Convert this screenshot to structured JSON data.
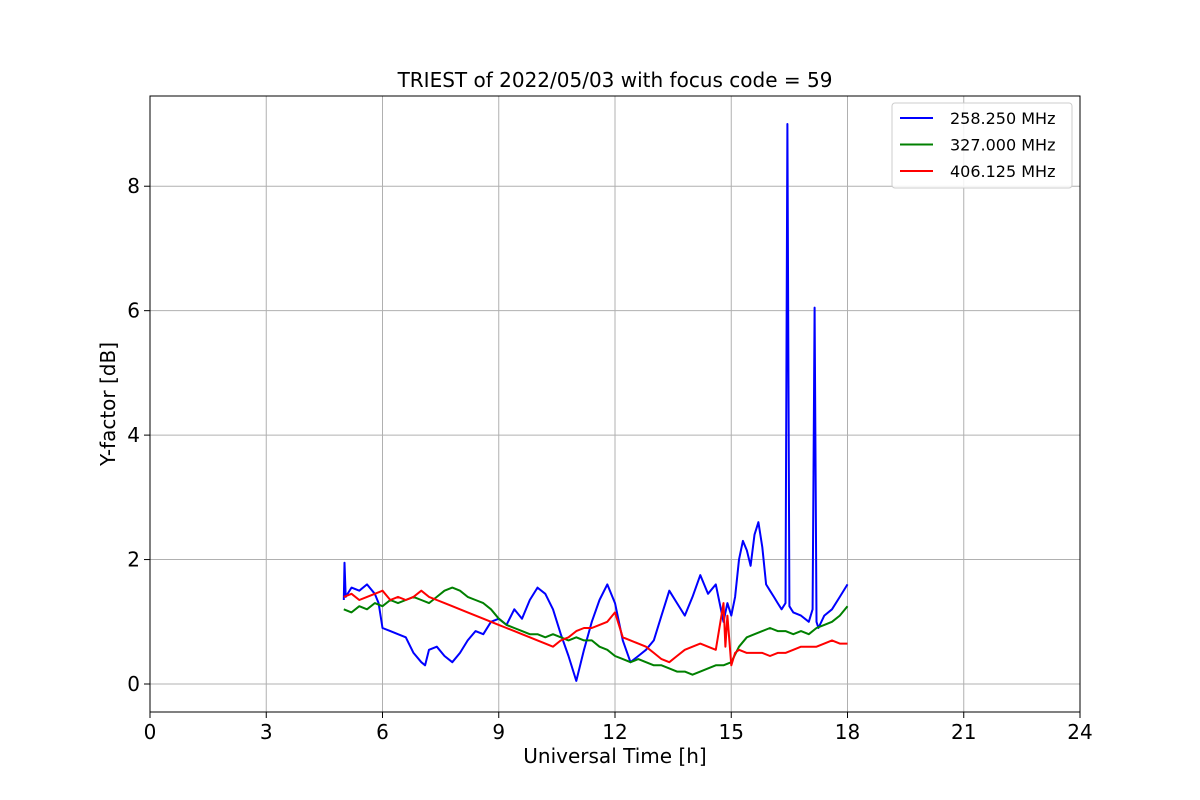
{
  "chart_data": {
    "type": "line",
    "title": "TRIEST of 2022/05/03 with focus code = 59",
    "xlabel": "Universal Time [h]",
    "ylabel": "Y-factor [dB]",
    "xlim": [
      0,
      24
    ],
    "ylim": [
      -0.45,
      9.45
    ],
    "xticks": [
      0,
      3,
      6,
      9,
      12,
      15,
      18,
      21,
      24
    ],
    "yticks": [
      0,
      2,
      4,
      6,
      8
    ],
    "grid": true,
    "legend_position": "top-right",
    "series": [
      {
        "name": "258.250 MHz",
        "color": "#0000ff",
        "x": [
          5.0,
          5.02,
          5.05,
          5.2,
          5.4,
          5.6,
          5.8,
          5.9,
          6.0,
          6.2,
          6.4,
          6.6,
          6.8,
          7.0,
          7.1,
          7.2,
          7.4,
          7.6,
          7.8,
          8.0,
          8.2,
          8.4,
          8.6,
          8.8,
          9.0,
          9.2,
          9.4,
          9.6,
          9.8,
          10.0,
          10.2,
          10.4,
          10.6,
          10.8,
          11.0,
          11.2,
          11.4,
          11.6,
          11.8,
          12.0,
          12.2,
          12.4,
          12.6,
          12.8,
          13.0,
          13.2,
          13.4,
          13.6,
          13.8,
          14.0,
          14.2,
          14.4,
          14.6,
          14.8,
          14.9,
          15.0,
          15.1,
          15.2,
          15.3,
          15.4,
          15.5,
          15.6,
          15.7,
          15.8,
          15.9,
          16.0,
          16.1,
          16.2,
          16.3,
          16.4,
          16.45,
          16.5,
          16.55,
          16.6,
          16.8,
          17.0,
          17.1,
          17.15,
          17.2,
          17.25,
          17.4,
          17.6,
          17.8,
          18.0
        ],
        "y": [
          1.35,
          1.95,
          1.4,
          1.55,
          1.5,
          1.6,
          1.45,
          1.3,
          0.9,
          0.85,
          0.8,
          0.75,
          0.5,
          0.35,
          0.3,
          0.55,
          0.6,
          0.45,
          0.35,
          0.5,
          0.7,
          0.85,
          0.8,
          1.0,
          1.05,
          0.95,
          1.2,
          1.05,
          1.35,
          1.55,
          1.45,
          1.2,
          0.8,
          0.45,
          0.05,
          0.55,
          1.0,
          1.35,
          1.6,
          1.3,
          0.7,
          0.35,
          0.45,
          0.55,
          0.7,
          1.1,
          1.5,
          1.3,
          1.1,
          1.4,
          1.75,
          1.45,
          1.6,
          1.0,
          1.3,
          1.1,
          1.4,
          2.0,
          2.3,
          2.15,
          1.9,
          2.4,
          2.6,
          2.2,
          1.6,
          1.5,
          1.4,
          1.3,
          1.2,
          1.3,
          9.0,
          1.25,
          1.2,
          1.15,
          1.1,
          1.0,
          1.2,
          6.05,
          1.0,
          0.9,
          1.1,
          1.2,
          1.4,
          1.6
        ]
      },
      {
        "name": "327.000 MHz",
        "color": "#008000",
        "x": [
          5.0,
          5.2,
          5.4,
          5.6,
          5.8,
          6.0,
          6.2,
          6.4,
          6.6,
          6.8,
          7.0,
          7.2,
          7.4,
          7.6,
          7.8,
          8.0,
          8.2,
          8.4,
          8.6,
          8.8,
          9.0,
          9.2,
          9.4,
          9.6,
          9.8,
          10.0,
          10.2,
          10.4,
          10.6,
          10.8,
          11.0,
          11.2,
          11.4,
          11.6,
          11.8,
          12.0,
          12.2,
          12.4,
          12.6,
          12.8,
          13.0,
          13.2,
          13.4,
          13.6,
          13.8,
          14.0,
          14.2,
          14.4,
          14.6,
          14.8,
          15.0,
          15.2,
          15.4,
          15.6,
          15.8,
          16.0,
          16.2,
          16.4,
          16.6,
          16.8,
          17.0,
          17.2,
          17.4,
          17.6,
          17.8,
          18.0
        ],
        "y": [
          1.2,
          1.15,
          1.25,
          1.2,
          1.3,
          1.25,
          1.35,
          1.3,
          1.35,
          1.4,
          1.35,
          1.3,
          1.4,
          1.5,
          1.55,
          1.5,
          1.4,
          1.35,
          1.3,
          1.2,
          1.05,
          0.95,
          0.9,
          0.85,
          0.8,
          0.8,
          0.75,
          0.8,
          0.75,
          0.7,
          0.75,
          0.7,
          0.7,
          0.6,
          0.55,
          0.45,
          0.4,
          0.35,
          0.4,
          0.35,
          0.3,
          0.3,
          0.25,
          0.2,
          0.2,
          0.15,
          0.2,
          0.25,
          0.3,
          0.3,
          0.35,
          0.6,
          0.75,
          0.8,
          0.85,
          0.9,
          0.85,
          0.85,
          0.8,
          0.85,
          0.8,
          0.9,
          0.95,
          1.0,
          1.1,
          1.25
        ]
      },
      {
        "name": "406.125 MHz",
        "color": "#ff0000",
        "x": [
          5.0,
          5.2,
          5.4,
          5.6,
          5.8,
          6.0,
          6.2,
          6.4,
          6.6,
          6.8,
          7.0,
          7.2,
          7.4,
          7.6,
          7.8,
          8.0,
          8.2,
          8.4,
          8.6,
          8.8,
          9.0,
          9.2,
          9.4,
          9.6,
          9.8,
          10.0,
          10.2,
          10.4,
          10.6,
          10.8,
          11.0,
          11.2,
          11.4,
          11.6,
          11.8,
          12.0,
          12.2,
          12.4,
          12.6,
          12.8,
          13.0,
          13.2,
          13.4,
          13.6,
          13.8,
          14.0,
          14.2,
          14.4,
          14.6,
          14.8,
          14.85,
          14.9,
          15.0,
          15.1,
          15.2,
          15.4,
          15.6,
          15.8,
          16.0,
          16.2,
          16.4,
          16.6,
          16.8,
          17.0,
          17.2,
          17.4,
          17.6,
          17.8,
          18.0
        ],
        "y": [
          1.4,
          1.45,
          1.35,
          1.4,
          1.45,
          1.5,
          1.35,
          1.4,
          1.35,
          1.4,
          1.5,
          1.4,
          1.35,
          1.3,
          1.25,
          1.2,
          1.15,
          1.1,
          1.05,
          1.0,
          0.95,
          0.9,
          0.85,
          0.8,
          0.75,
          0.7,
          0.65,
          0.6,
          0.7,
          0.75,
          0.85,
          0.9,
          0.9,
          0.95,
          1.0,
          1.15,
          0.75,
          0.7,
          0.65,
          0.6,
          0.5,
          0.4,
          0.35,
          0.45,
          0.55,
          0.6,
          0.65,
          0.6,
          0.55,
          1.3,
          0.6,
          1.1,
          0.3,
          0.5,
          0.55,
          0.5,
          0.5,
          0.5,
          0.45,
          0.5,
          0.5,
          0.55,
          0.6,
          0.6,
          0.6,
          0.65,
          0.7,
          0.65,
          0.65
        ]
      }
    ]
  }
}
